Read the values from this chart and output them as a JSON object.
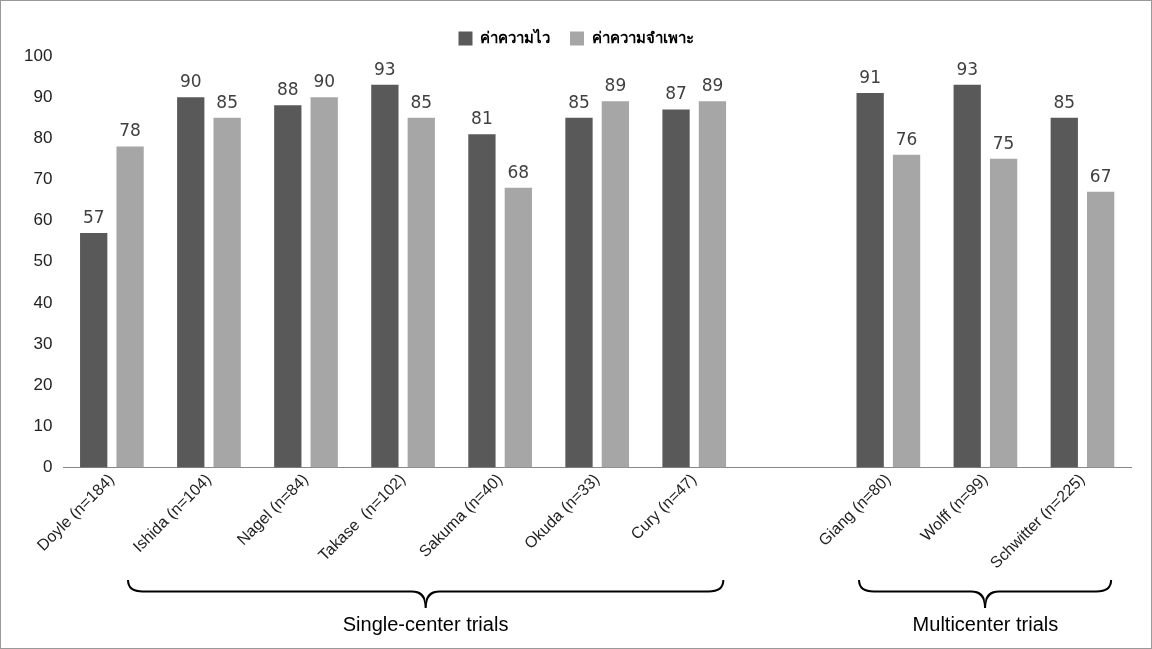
{
  "chart_data": {
    "type": "bar",
    "categories": [
      "Doyle (n=184)",
      "Ishida (n=104)",
      "Nagel (n=84)",
      "Takase  (n=102)",
      "Sakuma (n=40)",
      "Okuda (n=33)",
      "Cury (n=47)",
      null,
      "Giang (n=80)",
      "Wolff (n=99)",
      "Schwitter (n=225)"
    ],
    "series": [
      {
        "name": "ค่าความไว",
        "color": "#595959",
        "values": [
          57,
          90,
          88,
          93,
          81,
          85,
          87,
          null,
          91,
          93,
          85
        ]
      },
      {
        "name": "ค่าความจำเพาะ",
        "color": "#a6a6a6",
        "values": [
          78,
          85,
          90,
          85,
          68,
          89,
          89,
          null,
          76,
          75,
          67
        ]
      }
    ],
    "ylim": [
      0,
      100
    ],
    "yticks": [
      0,
      10,
      20,
      30,
      40,
      50,
      60,
      70,
      80,
      90,
      100
    ],
    "grid": false,
    "legend": "top",
    "data_labels": true,
    "annotations": [
      "Single-center trials",
      "Multicenter trials"
    ]
  }
}
